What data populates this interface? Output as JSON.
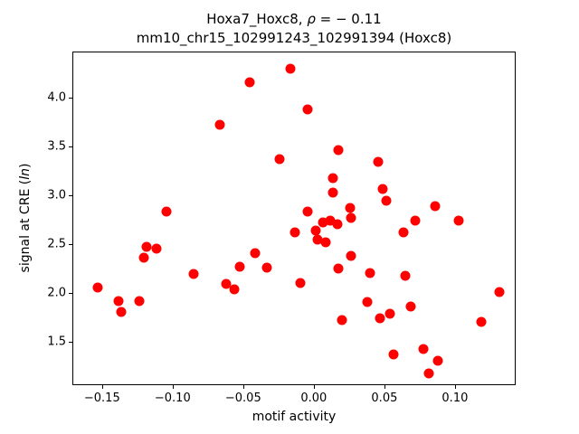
{
  "chart_data": {
    "type": "scatter",
    "title_line1_prefix": "Hoxa7_Hoxc8, ",
    "title_rho": "ρ",
    "title_line1_suffix": " = − 0.11",
    "title_line2": "mm10_chr15_102991243_102991394 (Hoxc8)",
    "xlabel": "motif activity",
    "ylabel_prefix": "signal at CRE (",
    "ylabel_italic": "ln",
    "ylabel_suffix": ")",
    "marker_color": "#ff0000",
    "axis_color": "#000000",
    "background_color": "#ffffff",
    "legend": "none",
    "grid": false,
    "xlim": [
      -0.171,
      0.143
    ],
    "ylim": [
      1.056,
      4.472
    ],
    "x_ticks": [
      -0.15,
      -0.1,
      -0.05,
      0.0,
      0.05,
      0.1
    ],
    "x_tick_labels": [
      "−0.15",
      "−0.10",
      "−0.05",
      "0.00",
      "0.05",
      "0.10"
    ],
    "y_ticks": [
      1.5,
      2.0,
      2.5,
      3.0,
      3.5,
      4.0
    ],
    "y_tick_labels": [
      "1.5",
      "2.0",
      "2.5",
      "3.0",
      "3.5",
      "4.0"
    ],
    "points": [
      [
        -0.017,
        4.31
      ],
      [
        -0.046,
        4.17
      ],
      [
        -0.067,
        3.73
      ],
      [
        -0.025,
        3.38
      ],
      [
        -0.005,
        3.89
      ],
      [
        0.017,
        3.47
      ],
      [
        0.045,
        3.35
      ],
      [
        0.013,
        3.19
      ],
      [
        0.013,
        3.04
      ],
      [
        0.048,
        3.07
      ],
      [
        0.051,
        2.95
      ],
      [
        0.025,
        2.88
      ],
      [
        0.026,
        2.78
      ],
      [
        0.085,
        2.9
      ],
      [
        -0.105,
        2.84
      ],
      [
        -0.005,
        2.84
      ],
      [
        -0.014,
        2.63
      ],
      [
        0.001,
        2.65
      ],
      [
        0.002,
        2.56
      ],
      [
        0.008,
        2.53
      ],
      [
        0.006,
        2.73
      ],
      [
        0.011,
        2.75
      ],
      [
        0.016,
        2.71
      ],
      [
        0.071,
        2.75
      ],
      [
        0.102,
        2.75
      ],
      [
        0.063,
        2.63
      ],
      [
        0.064,
        2.19
      ],
      [
        0.131,
        2.02
      ],
      [
        -0.154,
        2.07
      ],
      [
        -0.119,
        2.48
      ],
      [
        -0.112,
        2.46
      ],
      [
        -0.121,
        2.37
      ],
      [
        -0.139,
        1.93
      ],
      [
        -0.124,
        1.93
      ],
      [
        -0.137,
        1.82
      ],
      [
        -0.086,
        2.2
      ],
      [
        -0.063,
        2.1
      ],
      [
        -0.057,
        2.05
      ],
      [
        -0.042,
        2.42
      ],
      [
        -0.053,
        2.28
      ],
      [
        -0.034,
        2.27
      ],
      [
        0.026,
        2.39
      ],
      [
        0.017,
        2.26
      ],
      [
        0.039,
        2.21
      ],
      [
        -0.01,
        2.11
      ],
      [
        0.037,
        1.92
      ],
      [
        0.046,
        1.75
      ],
      [
        0.053,
        1.8
      ],
      [
        0.068,
        1.87
      ],
      [
        0.019,
        1.73
      ],
      [
        0.118,
        1.71
      ],
      [
        0.056,
        1.38
      ],
      [
        0.077,
        1.44
      ],
      [
        0.087,
        1.32
      ],
      [
        0.081,
        1.19
      ]
    ]
  }
}
